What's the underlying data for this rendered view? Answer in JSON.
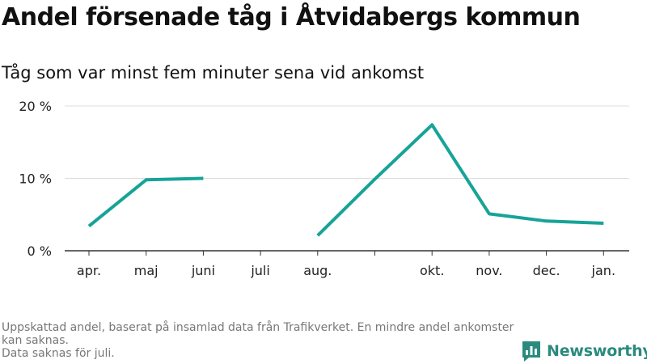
{
  "title": "Andel försenade tåg i Åtvidabergs kommun",
  "subtitle": "Tåg som var minst fem minuter sena vid ankomst",
  "footnote": [
    "Uppskattad andel, baserat på insamlad data från Trafikverket. En mindre andel ankomster kan saknas.",
    "Data saknas för juli."
  ],
  "logo": {
    "text": "Newsworthy",
    "icon": "bar-chart-speech-bubble-icon",
    "color": "#2a8a7e"
  },
  "colors": {
    "line": "#17a398",
    "grid": "#dddddd",
    "axis": "#333333"
  },
  "chart_data": {
    "type": "line",
    "title": "Andel försenade tåg i Åtvidabergs kommun",
    "subtitle": "Tåg som var minst fem minuter sena vid ankomst",
    "xlabel": "",
    "ylabel": "",
    "categories": [
      "apr.",
      "maj",
      "juni",
      "juli",
      "aug.",
      "",
      "okt.",
      "nov.",
      "dec.",
      "jan."
    ],
    "series": [
      {
        "values": [
          3.4,
          9.8,
          10.0,
          null,
          2.1,
          9.9,
          17.4,
          5.1,
          4.1,
          3.8
        ]
      }
    ],
    "yticks": [
      {
        "value": 0,
        "label": "0 %"
      },
      {
        "value": 10,
        "label": "10 %"
      },
      {
        "value": 20,
        "label": "20 %"
      }
    ],
    "ylim": [
      0,
      20
    ],
    "grid": true,
    "legend": "none"
  }
}
